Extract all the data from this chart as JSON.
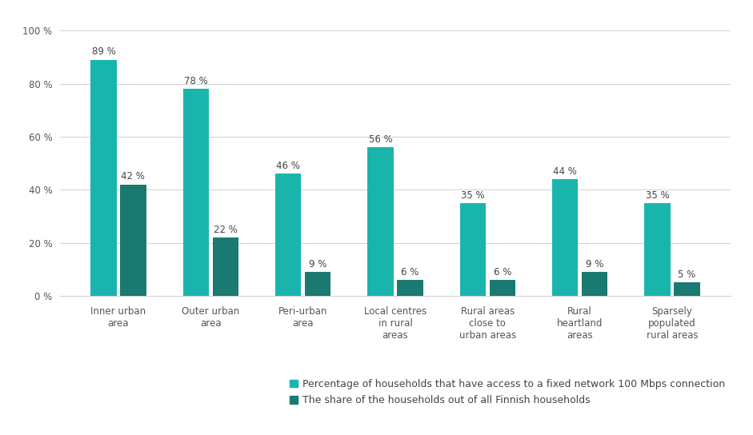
{
  "categories": [
    "Inner urban\narea",
    "Outer urban\narea",
    "Peri-urban\narea",
    "Local centres\nin rural\nareas",
    "Rural areas\nclose to\nurban areas",
    "Rural\nheartland\nareas",
    "Sparsely\npopulated\nrural areas"
  ],
  "series1_values": [
    89,
    78,
    46,
    56,
    35,
    44,
    35
  ],
  "series2_values": [
    42,
    22,
    9,
    6,
    6,
    9,
    5
  ],
  "series1_color": "#19B5AD",
  "series2_color": "#1A7A72",
  "series1_label": "Percentage of households that have access to a fixed network 100 Mbps connection",
  "series2_label": "The share of the households out of all Finnish households",
  "ylim": [
    0,
    105
  ],
  "yticks": [
    0,
    20,
    40,
    60,
    80,
    100
  ],
  "ytick_labels": [
    "0 %",
    "20 %",
    "40 %",
    "60 %",
    "80 %",
    "100 %"
  ],
  "background_color": "#ffffff",
  "bar_width": 0.28,
  "bar_gap": 0.04,
  "grid_color": "#d0d0d0",
  "label_fontsize": 8.5,
  "tick_fontsize": 8.5,
  "legend_fontsize": 9,
  "annotation_color": "#444444"
}
